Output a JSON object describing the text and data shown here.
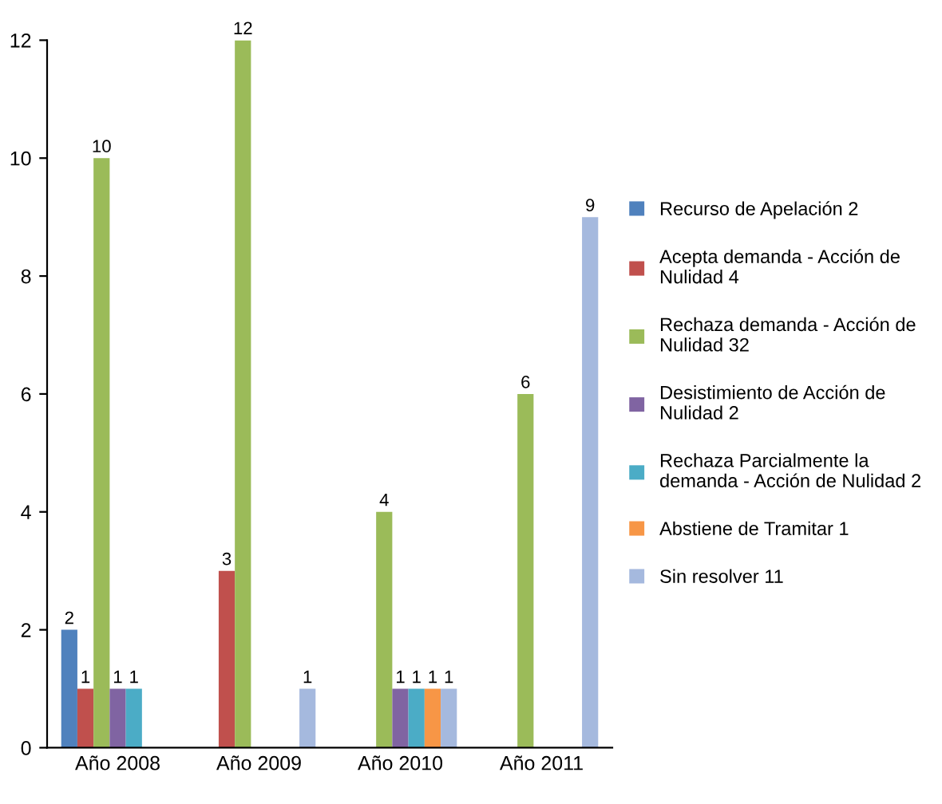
{
  "chart_data": {
    "type": "bar",
    "categories": [
      "Año 2008",
      "Año 2009",
      "Año 2010",
      "Año 2011"
    ],
    "series": [
      {
        "name": "Recurso de Apelación 2",
        "color": "#4f81bd",
        "values": [
          2,
          null,
          null,
          null
        ]
      },
      {
        "name": "Acepta demanda - Acción de\nNulidad 4",
        "color": "#c0504d",
        "values": [
          1,
          3,
          null,
          null
        ]
      },
      {
        "name": "Rechaza demanda - Acción de\nNulidad 32",
        "color": "#9bbb59",
        "values": [
          10,
          12,
          4,
          6
        ]
      },
      {
        "name": "Desistimiento de Acción de\nNulidad 2",
        "color": "#8064a2",
        "values": [
          1,
          null,
          1,
          null
        ]
      },
      {
        "name": "Rechaza Parcialmente la\ndemanda - Acción de Nulidad 2",
        "color": "#4bacc6",
        "values": [
          1,
          null,
          1,
          null
        ]
      },
      {
        "name": "Abstiene de Tramitar 1",
        "color": "#f79646",
        "values": [
          null,
          null,
          1,
          null
        ]
      },
      {
        "name": "Sin resolver 11",
        "color": "#a5b9de",
        "values": [
          null,
          1,
          1,
          9
        ]
      }
    ],
    "ylim": [
      0,
      12
    ],
    "yticks": [
      0,
      2,
      4,
      6,
      8,
      10,
      12
    ],
    "data_labels": true,
    "grid": false,
    "legend": "right"
  }
}
